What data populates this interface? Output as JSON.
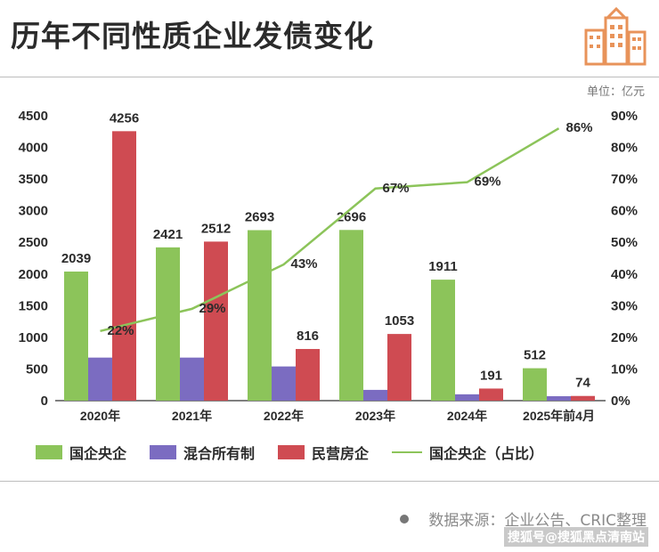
{
  "header": {
    "title": "历年不同性质企业发债变化",
    "unit": "单位：亿元"
  },
  "colors": {
    "soe": "#8cc45a",
    "mixed": "#7b6cc1",
    "private": "#cf4b52",
    "share_line": "#8cc45a",
    "logo": "#e8935a"
  },
  "chart_data": {
    "type": "bar",
    "categories": [
      "2020年",
      "2021年",
      "2022年",
      "2023年",
      "2024年",
      "2025年前4月"
    ],
    "series": [
      {
        "name": "国企央企",
        "values": [
          2039,
          2421,
          2693,
          2696,
          1911,
          512
        ],
        "labels": [
          "2039",
          "2421",
          "2693",
          "2696",
          "1911",
          "512"
        ]
      },
      {
        "name": "混合所有制",
        "values": [
          680,
          680,
          540,
          170,
          100,
          70
        ],
        "labels": []
      },
      {
        "name": "民营房企",
        "values": [
          4256,
          2512,
          816,
          1053,
          191,
          74
        ],
        "labels": [
          "4256",
          "2512",
          "816",
          "1053",
          "191",
          "74"
        ]
      }
    ],
    "line_series": {
      "name": "国企央企（占比）",
      "values": [
        22,
        29,
        43,
        67,
        69,
        86
      ],
      "labels": [
        "22%",
        "29%",
        "43%",
        "67%",
        "69%",
        "86%"
      ]
    },
    "ylim": [
      0,
      4500
    ],
    "y_ticks": [
      "0",
      "500",
      "1000",
      "1500",
      "2000",
      "2500",
      "3000",
      "3500",
      "4000",
      "4500"
    ],
    "y2lim": [
      0,
      90
    ],
    "y2_ticks": [
      "0%",
      "10%",
      "20%",
      "30%",
      "40%",
      "50%",
      "60%",
      "70%",
      "80%",
      "90%"
    ],
    "legend_position": "bottom",
    "grid": false
  },
  "legend": [
    {
      "label": "国企央企",
      "kind": "bar",
      "color": "#8cc45a"
    },
    {
      "label": "混合所有制",
      "kind": "bar",
      "color": "#7b6cc1"
    },
    {
      "label": "民营房企",
      "kind": "bar",
      "color": "#cf4b52"
    },
    {
      "label": "国企央企（占比）",
      "kind": "line",
      "color": "#8cc45a"
    }
  ],
  "footer": {
    "source": "数据来源：企业公告、CRIC整理",
    "credit": "搜狐号@搜狐黑点清南站"
  }
}
